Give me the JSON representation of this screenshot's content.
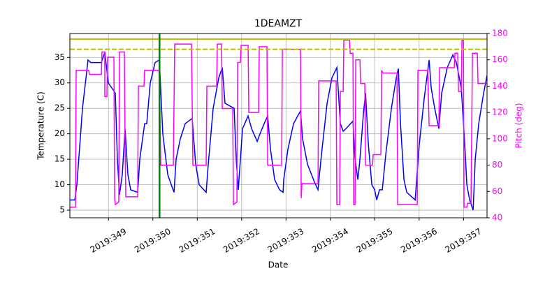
{
  "chart_data": {
    "type": "line",
    "title": "1DEAMZT",
    "xlabel": "Date",
    "ylabel": "Temperature (C)",
    "y2label": "Pitch (deg)",
    "xlim": [
      348.13,
      357.53
    ],
    "xticks": [
      {
        "value": 349,
        "label": "2019:349"
      },
      {
        "value": 350,
        "label": "2019:350"
      },
      {
        "value": 351,
        "label": "2019:351"
      },
      {
        "value": 352,
        "label": "2019:352"
      },
      {
        "value": 353,
        "label": "2019:353"
      },
      {
        "value": 354,
        "label": "2019:354"
      },
      {
        "value": 355,
        "label": "2019:355"
      },
      {
        "value": 356,
        "label": "2019:356"
      },
      {
        "value": 357,
        "label": "2019:357"
      }
    ],
    "ylim": [
      3.5,
      39.7
    ],
    "yticks": [
      5,
      10,
      15,
      20,
      25,
      30,
      35
    ],
    "y2lim": [
      40,
      180
    ],
    "y2ticks": [
      40,
      60,
      80,
      100,
      120,
      140,
      160,
      180
    ],
    "y2color": "#ff00ff",
    "grid": true,
    "hlines": [
      {
        "value": 38.6,
        "color": "#bfbf00",
        "style": "solid"
      },
      {
        "value": 36.6,
        "color": "#bfbf00",
        "style": "dashed"
      }
    ],
    "vlines": [
      {
        "value": 350.15,
        "color": "#008000",
        "style": "solid"
      }
    ],
    "series": [
      {
        "color": "#0000ff",
        "x": [
          348.13,
          348.24,
          348.288,
          348.414,
          348.539,
          348.602,
          348.839,
          348.917,
          348.996,
          349.154,
          349.201,
          349.248,
          349.311,
          349.374,
          349.437,
          349.5,
          349.658,
          349.705,
          349.815,
          349.862,
          349.941,
          350.051,
          350.146,
          350.224,
          350.335,
          350.414,
          350.477,
          350.524,
          350.618,
          350.729,
          350.886,
          350.965,
          351.044,
          351.201,
          351.248,
          351.359,
          351.485,
          351.564,
          351.626,
          351.831,
          351.878,
          351.925,
          351.973,
          352.02,
          352.146,
          352.225,
          352.351,
          352.414,
          352.508,
          352.587,
          352.65,
          352.744,
          352.855,
          352.934,
          352.949,
          353.044,
          353.17,
          353.327,
          353.374,
          353.485,
          353.642,
          353.721,
          353.8,
          353.926,
          354.036,
          354.146,
          354.225,
          354.288,
          354.351,
          354.509,
          354.556,
          354.619,
          354.666,
          354.745,
          354.792,
          354.855,
          354.934,
          354.997,
          355.044,
          355.107,
          355.17,
          355.249,
          355.375,
          355.485,
          355.532,
          355.58,
          355.658,
          355.721,
          355.847,
          355.91,
          356.004,
          356.115,
          356.225,
          356.272,
          356.351,
          356.445,
          356.508,
          356.634,
          356.76,
          356.839,
          356.949,
          357.028,
          357.075,
          357.138,
          357.217,
          357.264,
          357.343,
          357.453,
          357.532
        ],
        "values": [
          7,
          7,
          10,
          25,
          34.5,
          34,
          34,
          36,
          30,
          28,
          15,
          8,
          12,
          21,
          12,
          9,
          8.5,
          15,
          22,
          22,
          30,
          34,
          34.5,
          20,
          12,
          10,
          8.5,
          15,
          19,
          22,
          23,
          14,
          10,
          8.5,
          14,
          25,
          31,
          33,
          26,
          25,
          15,
          9,
          15,
          21,
          23.5,
          21,
          18.5,
          20,
          22,
          23.5,
          17,
          11,
          9,
          8.5,
          11,
          17,
          22,
          24.5,
          19,
          14,
          10.5,
          9,
          16,
          26,
          31,
          33,
          22,
          20.5,
          21,
          22.5,
          15,
          11,
          15,
          24,
          28,
          18,
          10,
          9,
          7,
          9,
          9,
          16,
          25,
          31,
          32.8,
          22,
          11,
          8.5,
          7.5,
          7,
          18,
          27,
          34.5,
          29,
          25,
          21,
          28,
          33,
          35.5,
          34,
          29,
          18,
          10,
          7,
          5,
          15,
          22,
          28,
          31.5
        ]
      },
      {
        "color": "#ff00ff",
        "axis": "y2",
        "x": [
          348.13,
          348.256,
          348.272,
          348.555,
          348.571,
          348.839,
          348.854,
          348.917,
          348.917,
          348.965,
          348.98,
          349.122,
          349.138,
          349.154,
          349.232,
          349.248,
          349.358,
          349.374,
          349.39,
          349.658,
          349.673,
          349.8,
          349.815,
          350.146,
          350.177,
          350.461,
          350.492,
          350.871,
          350.902,
          351.201,
          351.217,
          351.437,
          351.453,
          351.548,
          351.564,
          351.8,
          351.815,
          351.894,
          351.91,
          351.973,
          351.989,
          352.146,
          352.162,
          352.382,
          352.398,
          352.571,
          352.587,
          352.902,
          352.918,
          353.327,
          353.343,
          353.359,
          353.721,
          353.737,
          354.13,
          354.146,
          354.209,
          354.225,
          354.288,
          354.304,
          354.43,
          354.446,
          354.509,
          354.524,
          354.556,
          354.572,
          354.666,
          354.682,
          354.776,
          354.792,
          354.949,
          354.965,
          355.138,
          355.154,
          355.186,
          355.501,
          355.517,
          355.957,
          355.973,
          356.193,
          356.225,
          356.445,
          356.461,
          356.791,
          356.807,
          356.87,
          356.886,
          356.949,
          356.965,
          356.997,
          357.012,
          357.075,
          357.091,
          357.169,
          357.201,
          357.311,
          357.327,
          357.532
        ],
        "values": [
          48,
          48,
          152,
          152,
          149,
          149,
          166,
          166,
          132,
          132,
          162,
          162,
          55,
          50,
          52,
          166,
          166,
          95,
          56,
          56,
          140,
          140,
          152,
          152,
          80,
          80,
          172,
          172,
          80,
          80,
          140,
          140,
          172,
          172,
          123,
          123,
          50,
          52,
          158,
          158,
          171,
          171,
          120,
          120,
          170,
          170,
          80,
          80,
          168,
          168,
          55,
          66,
          66,
          144,
          144,
          50,
          50,
          136,
          136,
          175,
          175,
          165,
          165,
          50,
          50,
          160,
          160,
          142,
          142,
          80,
          80,
          88,
          88,
          152,
          150,
          150,
          50,
          50,
          152,
          152,
          110,
          110,
          154,
          154,
          165,
          165,
          136,
          136,
          175,
          175,
          48,
          48,
          51,
          51,
          165,
          165,
          142,
          142
        ]
      }
    ]
  }
}
